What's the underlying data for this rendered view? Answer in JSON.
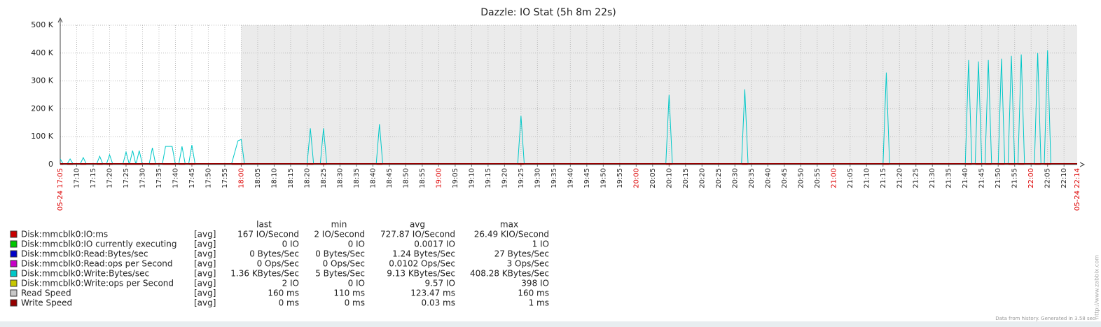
{
  "chart_data": {
    "type": "line",
    "title": "Dazzle: IO Stat (5h 8m 22s)",
    "ylim": [
      0,
      500000
    ],
    "yticks": [
      {
        "value": 0,
        "label": "0"
      },
      {
        "value": 100000,
        "label": "100 K"
      },
      {
        "value": 200000,
        "label": "200 K"
      },
      {
        "value": 300000,
        "label": "300 K"
      },
      {
        "value": 400000,
        "label": "400 K"
      },
      {
        "value": 500000,
        "label": "500 K"
      }
    ],
    "xlim": [
      "05-24 17:05",
      "05-24 22:14"
    ],
    "xticks": [
      "17:10",
      "17:15",
      "17:20",
      "17:25",
      "17:30",
      "17:35",
      "17:40",
      "17:45",
      "17:50",
      "17:55",
      "18:00",
      "18:05",
      "18:10",
      "18:15",
      "18:20",
      "18:25",
      "18:30",
      "18:35",
      "18:40",
      "18:45",
      "18:50",
      "18:55",
      "19:00",
      "19:05",
      "19:10",
      "19:15",
      "19:20",
      "19:25",
      "19:30",
      "19:35",
      "19:40",
      "19:45",
      "19:50",
      "19:55",
      "20:00",
      "20:05",
      "20:10",
      "20:15",
      "20:20",
      "20:25",
      "20:30",
      "20:35",
      "20:40",
      "20:45",
      "20:50",
      "20:55",
      "21:00",
      "21:05",
      "21:10",
      "21:15",
      "21:20",
      "21:25",
      "21:30",
      "21:35",
      "21:40",
      "21:45",
      "21:50",
      "21:55",
      "22:00",
      "22:05",
      "22:10"
    ],
    "grid": true,
    "shade_start": "18:00",
    "x": [
      "17:05",
      "17:06",
      "17:07",
      "17:08",
      "17:09",
      "17:11",
      "17:12",
      "17:13",
      "17:16",
      "17:17",
      "17:18",
      "17:19",
      "17:20",
      "17:21",
      "17:24",
      "17:25",
      "17:26",
      "17:27",
      "17:28",
      "17:29",
      "17:30",
      "17:32",
      "17:33",
      "17:34",
      "17:36",
      "17:37",
      "17:39",
      "17:40",
      "17:41",
      "17:42",
      "17:43",
      "17:44",
      "17:45",
      "17:46",
      "17:57",
      "17:59",
      "18:00",
      "18:01",
      "18:20",
      "18:21",
      "18:22",
      "18:24",
      "18:25",
      "18:26",
      "18:41",
      "18:42",
      "18:43",
      "19:24",
      "19:25",
      "19:26",
      "20:09",
      "20:10",
      "20:11",
      "20:32",
      "20:33",
      "20:34",
      "21:15",
      "21:16",
      "21:17",
      "21:40",
      "21:41",
      "21:42",
      "21:43",
      "21:44",
      "21:45",
      "21:46",
      "21:47",
      "21:48",
      "21:50",
      "21:51",
      "21:52",
      "21:53",
      "21:54",
      "21:55",
      "21:56",
      "21:57",
      "21:58",
      "22:01",
      "22:02",
      "22:03",
      "22:04",
      "22:05",
      "22:06",
      "22:14"
    ],
    "legend_headers": [
      "last",
      "min",
      "avg",
      "max"
    ],
    "series": [
      {
        "name": "Disk:mmcblk0:IO:ms",
        "color": "#c80000",
        "func": "[avg]",
        "last": "167 IO/Second",
        "min": "2 IO/Second",
        "avg": "727.87 IO/Second",
        "max": "26.49 KIO/Second"
      },
      {
        "name": "Disk:mmcblk0:IO currently executing",
        "color": "#00c800",
        "func": "[avg]",
        "last": "0 IO",
        "min": "0 IO",
        "avg": "0.0017 IO",
        "max": "1 IO"
      },
      {
        "name": "Disk:mmcblk0:Read:Bytes/sec",
        "color": "#0000c8",
        "func": "[avg]",
        "last": "0 Bytes/Sec",
        "min": "0 Bytes/Sec",
        "avg": "1.24 Bytes/Sec",
        "max": "27 Bytes/Sec"
      },
      {
        "name": "Disk:mmcblk0:Read:ops per Second",
        "color": "#c800c8",
        "func": "[avg]",
        "last": "0 Ops/Sec",
        "min": "0 Ops/Sec",
        "avg": "0.0102 Ops/Sec",
        "max": "3 Ops/Sec"
      },
      {
        "name": "Disk:mmcblk0:Write:Bytes/sec",
        "color": "#00c8c8",
        "func": "[avg]",
        "last": "1.36 KBytes/Sec",
        "min": "5 Bytes/Sec",
        "avg": "9.13 KBytes/Sec",
        "max": "408.28 KBytes/Sec",
        "values": [
          20000,
          0,
          0,
          20000,
          0,
          0,
          25000,
          0,
          0,
          30000,
          0,
          0,
          35000,
          0,
          0,
          45000,
          0,
          50000,
          0,
          50000,
          0,
          0,
          60000,
          0,
          0,
          65000,
          65000,
          0,
          0,
          65000,
          0,
          0,
          70000,
          0,
          0,
          85000,
          90000,
          0,
          0,
          130000,
          0,
          0,
          130000,
          0,
          0,
          145000,
          0,
          0,
          175000,
          0,
          0,
          250000,
          0,
          0,
          270000,
          0,
          0,
          330000,
          0,
          0,
          375000,
          0,
          0,
          370000,
          0,
          0,
          375000,
          0,
          0,
          380000,
          0,
          0,
          390000,
          0,
          0,
          395000,
          0,
          0,
          400000,
          0,
          0,
          410000,
          0,
          0
        ]
      },
      {
        "name": "Disk:mmcblk0:Write:ops per Second",
        "color": "#c8c800",
        "func": "[avg]",
        "last": "2 IO",
        "min": "0 IO",
        "avg": "9.57 IO",
        "max": "398 IO"
      },
      {
        "name": "Read Speed",
        "color": "#c8c8c8",
        "func": "[avg]",
        "last": "160 ms",
        "min": "110 ms",
        "avg": "123.47 ms",
        "max": "160 ms"
      },
      {
        "name": "Write Speed",
        "color": "#960000",
        "func": "[avg]",
        "last": "0 ms",
        "min": "0 ms",
        "avg": "0.03 ms",
        "max": "1 ms"
      }
    ],
    "footer": "Data from history. Generated in 3.58 sec.",
    "watermark": "http://www.zabbix.com"
  }
}
